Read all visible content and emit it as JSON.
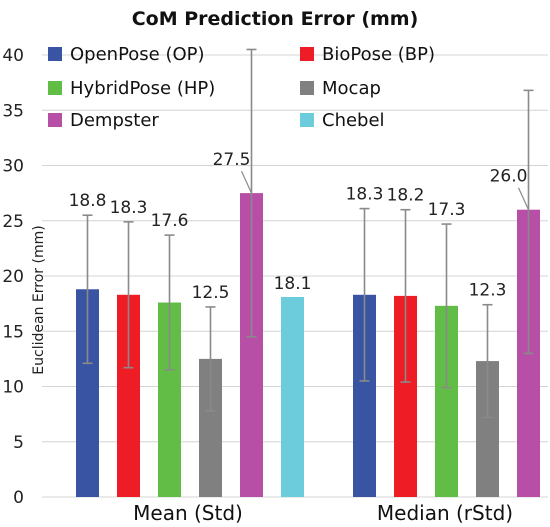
{
  "chart_data": {
    "type": "bar",
    "title": "CoM Prediction Error (mm)",
    "ylabel": "Euclidean Error (mm)",
    "xlabel": "",
    "ylim": [
      0,
      40
    ],
    "yticks": [
      0,
      5,
      10,
      15,
      20,
      25,
      30,
      35,
      40
    ],
    "grid": true,
    "legend_position": "top",
    "categories": [
      "Mean (Std)",
      "Median (rStd)"
    ],
    "series": [
      {
        "name": "OpenPose (OP)",
        "color": "#3a54a4",
        "values": [
          18.8,
          18.3
        ],
        "errors": [
          [
            12.1,
            25.5
          ],
          [
            10.5,
            26.1
          ]
        ],
        "labels": [
          "18.8",
          "18.3"
        ]
      },
      {
        "name": "BioPose (BP)",
        "color": "#ee1c25",
        "values": [
          18.3,
          18.2
        ],
        "errors": [
          [
            11.7,
            24.9
          ],
          [
            10.4,
            26.0
          ]
        ],
        "labels": [
          "18.3",
          "18.2"
        ]
      },
      {
        "name": "HybridPose (HP)",
        "color": "#62bd46",
        "values": [
          17.6,
          17.3
        ],
        "errors": [
          [
            11.5,
            23.7
          ],
          [
            9.9,
            24.7
          ]
        ],
        "labels": [
          "17.6",
          "17.3"
        ]
      },
      {
        "name": "Mocap",
        "color": "#808080",
        "values": [
          12.5,
          12.3
        ],
        "errors": [
          [
            7.8,
            17.2
          ],
          [
            7.2,
            17.4
          ]
        ],
        "labels": [
          "12.5",
          "12.3"
        ]
      },
      {
        "name": "Dempster",
        "color": "#b74fa7",
        "values": [
          27.5,
          26.0
        ],
        "errors": [
          [
            14.5,
            40.5
          ],
          [
            13.0,
            36.8
          ]
        ],
        "labels": [
          "27.5",
          "26.0"
        ]
      },
      {
        "name": "Chebel",
        "color": "#6dccdc",
        "values": [
          18.1,
          null
        ],
        "errors": [
          null,
          null
        ],
        "labels": [
          "18.1",
          ""
        ]
      }
    ]
  }
}
